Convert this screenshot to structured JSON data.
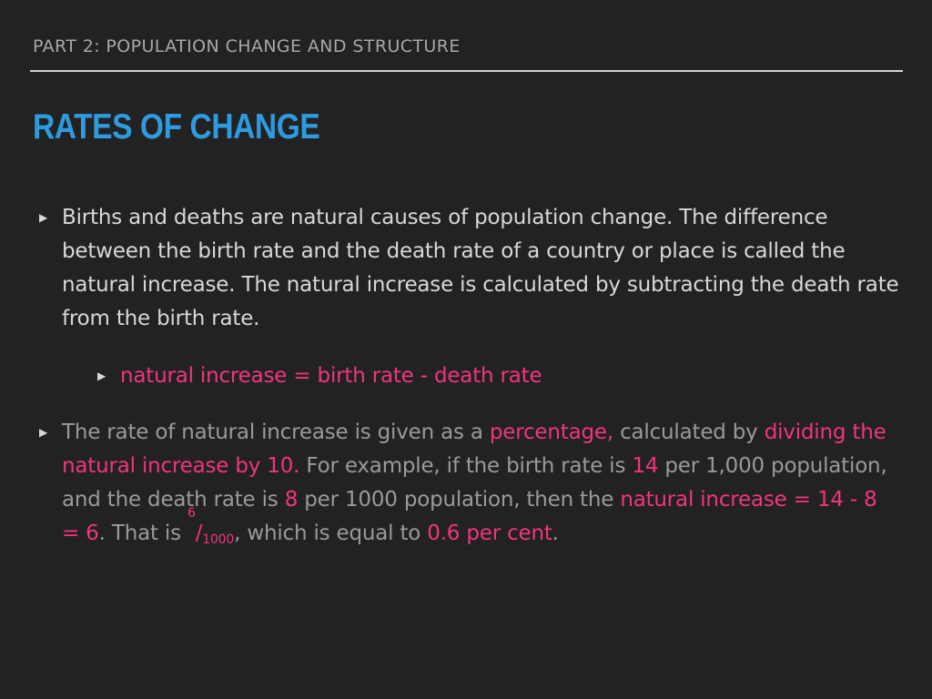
{
  "slide": {
    "section_header": "PART 2: POPULATION CHANGE AND STRUCTURE",
    "title": "RATES OF CHANGE",
    "bullet_icon": "triangle-right-icon",
    "bullets": [
      {
        "text": " Births and deaths are natural causes of population change. The difference between the birth rate and the death rate of a country or place is called the natural increase. The natural increase is calculated by subtracting the death rate from the birth rate."
      },
      {
        "sub_text": "natural increase = birth rate - death rate"
      },
      {
        "segments": [
          "The rate of natural increase is given as a ",
          "percentage,",
          " calculated by ",
          "dividing the natural increase by 10.",
          " For example, if the birth rate is ",
          "14",
          " per 1,000 population, and the death rate is ",
          "8",
          " per 1000 population, then the ",
          "natural increase = 14 - 8 = 6",
          ". That is ",
          "6",
          "/",
          "1000",
          ", which is equal to ",
          "0.6 per cent",
          "."
        ]
      }
    ]
  },
  "colors": {
    "background": "#222222",
    "title": "#2e9be0",
    "section_header": "#a8a8a8",
    "body_text": "#d8d8d8",
    "muted_text": "#9a9a9a",
    "highlight": "#f0357f"
  }
}
